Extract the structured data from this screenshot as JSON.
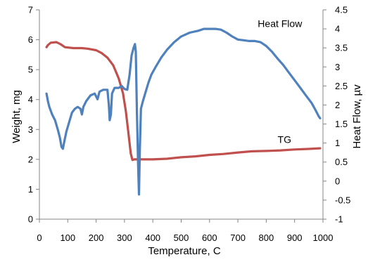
{
  "chart_data": {
    "type": "line",
    "xlabel": "Temperature, C",
    "ylabel_left": "Weight, mg",
    "ylabel_right": "Heat Flow, µv",
    "xlim": [
      0,
      1000
    ],
    "ylim_left": [
      0,
      7
    ],
    "ylim_right": [
      -1,
      4.5
    ],
    "x_ticks": [
      0,
      100,
      200,
      300,
      400,
      500,
      600,
      700,
      800,
      900,
      1000
    ],
    "y_left_ticks": [
      0,
      1,
      2,
      3,
      4,
      5,
      6,
      7
    ],
    "y_right_ticks": [
      -1,
      -0.5,
      0,
      0.5,
      1,
      1.5,
      2,
      2.5,
      3,
      3.5,
      4,
      4.5
    ],
    "grid": false,
    "series": [
      {
        "name": "TG",
        "axis": "left",
        "color": "#c0504d",
        "points": [
          [
            25,
            5.75
          ],
          [
            30,
            5.82
          ],
          [
            40,
            5.9
          ],
          [
            60,
            5.92
          ],
          [
            75,
            5.85
          ],
          [
            90,
            5.75
          ],
          [
            120,
            5.72
          ],
          [
            150,
            5.72
          ],
          [
            170,
            5.7
          ],
          [
            200,
            5.65
          ],
          [
            220,
            5.55
          ],
          [
            240,
            5.4
          ],
          [
            260,
            5.15
          ],
          [
            280,
            4.7
          ],
          [
            295,
            4.2
          ],
          [
            305,
            3.6
          ],
          [
            315,
            2.8
          ],
          [
            322,
            2.2
          ],
          [
            328,
            1.98
          ],
          [
            335,
            2.0
          ],
          [
            360,
            2.0
          ],
          [
            400,
            2.0
          ],
          [
            450,
            2.02
          ],
          [
            500,
            2.07
          ],
          [
            550,
            2.1
          ],
          [
            600,
            2.15
          ],
          [
            650,
            2.18
          ],
          [
            700,
            2.23
          ],
          [
            750,
            2.27
          ],
          [
            800,
            2.28
          ],
          [
            850,
            2.3
          ],
          [
            900,
            2.33
          ],
          [
            950,
            2.35
          ],
          [
            990,
            2.37
          ]
        ]
      },
      {
        "name": "Heat Flow",
        "axis": "right",
        "color": "#4f81bd",
        "points": [
          [
            25,
            2.3
          ],
          [
            30,
            2.1
          ],
          [
            35,
            1.95
          ],
          [
            45,
            1.75
          ],
          [
            55,
            1.6
          ],
          [
            65,
            1.35
          ],
          [
            72,
            1.15
          ],
          [
            78,
            0.9
          ],
          [
            83,
            0.85
          ],
          [
            88,
            1.05
          ],
          [
            95,
            1.3
          ],
          [
            105,
            1.55
          ],
          [
            115,
            1.8
          ],
          [
            125,
            1.9
          ],
          [
            135,
            1.95
          ],
          [
            145,
            1.9
          ],
          [
            150,
            1.75
          ],
          [
            155,
            1.95
          ],
          [
            165,
            2.1
          ],
          [
            180,
            2.25
          ],
          [
            195,
            2.3
          ],
          [
            205,
            2.15
          ],
          [
            212,
            2.35
          ],
          [
            225,
            2.4
          ],
          [
            240,
            2.4
          ],
          [
            245,
            2.0
          ],
          [
            248,
            1.6
          ],
          [
            252,
            1.75
          ],
          [
            256,
            2.3
          ],
          [
            265,
            2.45
          ],
          [
            280,
            2.45
          ],
          [
            290,
            2.5
          ],
          [
            300,
            2.42
          ],
          [
            310,
            2.4
          ],
          [
            318,
            2.8
          ],
          [
            325,
            3.3
          ],
          [
            332,
            3.5
          ],
          [
            337,
            3.6
          ],
          [
            340,
            3.4
          ],
          [
            344,
            1.8
          ],
          [
            348,
            0.5
          ],
          [
            351,
            -0.35
          ],
          [
            354,
            0.8
          ],
          [
            358,
            1.9
          ],
          [
            365,
            2.1
          ],
          [
            375,
            2.35
          ],
          [
            385,
            2.6
          ],
          [
            395,
            2.8
          ],
          [
            410,
            3.0
          ],
          [
            430,
            3.25
          ],
          [
            450,
            3.45
          ],
          [
            475,
            3.65
          ],
          [
            500,
            3.8
          ],
          [
            530,
            3.9
          ],
          [
            560,
            3.95
          ],
          [
            580,
            4.0
          ],
          [
            600,
            4.0
          ],
          [
            620,
            4.0
          ],
          [
            640,
            3.98
          ],
          [
            660,
            3.9
          ],
          [
            680,
            3.8
          ],
          [
            700,
            3.72
          ],
          [
            720,
            3.7
          ],
          [
            740,
            3.68
          ],
          [
            760,
            3.68
          ],
          [
            780,
            3.65
          ],
          [
            800,
            3.55
          ],
          [
            820,
            3.4
          ],
          [
            840,
            3.22
          ],
          [
            860,
            3.05
          ],
          [
            880,
            2.85
          ],
          [
            900,
            2.65
          ],
          [
            920,
            2.45
          ],
          [
            940,
            2.25
          ],
          [
            960,
            2.05
          ],
          [
            975,
            1.85
          ],
          [
            985,
            1.7
          ],
          [
            990,
            1.65
          ]
        ]
      }
    ],
    "annotations": [
      {
        "text": "Heat Flow",
        "x": 770,
        "y_right": 4.05
      },
      {
        "text": "TG",
        "x": 840,
        "y_left": 2.55
      }
    ]
  }
}
